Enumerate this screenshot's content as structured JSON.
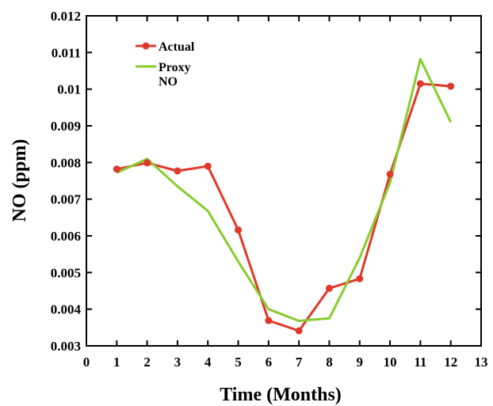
{
  "chart_data": {
    "type": "line",
    "xlabel": "Time (Months)",
    "ylabel": "NO (ppm)",
    "xlim": [
      0,
      13
    ],
    "ylim": [
      0.003,
      0.012
    ],
    "x_ticks": [
      "0",
      "1",
      "2",
      "3",
      "4",
      "5",
      "6",
      "7",
      "8",
      "9",
      "10",
      "11",
      "12",
      "13"
    ],
    "y_ticks": [
      "0.003",
      "0.004",
      "0.005",
      "0.006",
      "0.007",
      "0.008",
      "0.009",
      "0.01",
      "0.011",
      "0.012"
    ],
    "grid": false,
    "legend_position": "top-left",
    "x": [
      1,
      2,
      3,
      4,
      5,
      6,
      7,
      8,
      9,
      10,
      11,
      12
    ],
    "series": [
      {
        "name": "Actual",
        "color": "#e0392b",
        "markers": true,
        "values": [
          0.00782,
          0.00799,
          0.00777,
          0.0079,
          0.00616,
          0.00369,
          0.00341,
          0.00457,
          0.00483,
          0.00768,
          0.01015,
          0.01008
        ]
      },
      {
        "name": "Proxy NO",
        "name_lines": [
          "Proxy",
          "NO"
        ],
        "color": "#86cc2e",
        "markers": false,
        "values": [
          0.00772,
          0.0081,
          0.00735,
          0.00668,
          0.0053,
          0.004,
          0.00368,
          0.00375,
          0.0054,
          0.00745,
          0.01082,
          0.0091
        ]
      }
    ]
  }
}
